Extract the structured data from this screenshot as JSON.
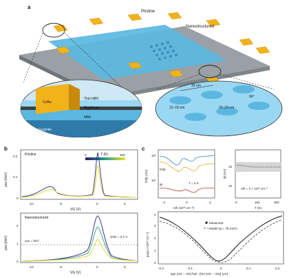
{
  "panel_a": {
    "letter": "a",
    "labels": {
      "pristine": "Pristine",
      "nanostructured": "Nanostructured",
      "cr_au": "Cr/Au",
      "thin_hbn": "Thin hBN",
      "graphene": "Graphene",
      "hbn": "hBN",
      "graphite": "Graphite",
      "dim_35": "35 nm",
      "dim_12_15": "12–15 nm",
      "dim_20_23": "20–23 nm",
      "angle": "66°"
    }
  },
  "panel_b": {
    "letter": "b",
    "top": {
      "title": "Pristine",
      "colorbar_label": "T (K)",
      "colorbar_min": "0",
      "colorbar_max": "300",
      "ylabel": "ρxx (h/e²)",
      "xlabel": "VG (V)",
      "yticks": [
        "0",
        "0.1",
        "0.2"
      ],
      "xticks": [
        "-10",
        "-5",
        "0",
        "5"
      ]
    },
    "bottom": {
      "title": "Nanostructured",
      "ylabel": "ρxx (h/e²)",
      "xlabel": "VG (V)",
      "yticks": [
        "0",
        "1",
        "2"
      ],
      "xticks": [
        "-10",
        "-5",
        "0",
        "5"
      ],
      "ref_label": "ρxx = h/e²",
      "delta_label": "ΔVD = 2.1 V"
    }
  },
  "panel_c": {
    "letter": "c",
    "inset_left": {
      "ylabel": "lmfp (nm)",
      "xlabel": "nth (10¹² cm⁻²)",
      "temp_label": "T = 4 K",
      "yticks": [
        "10¹",
        "10²"
      ],
      "xticks": [
        "-4",
        "0",
        "4"
      ],
      "side_labels": [
        "lmfp",
        "lϕ"
      ]
    },
    "inset_right": {
      "ylabel": "lϕ (nm)",
      "xlabel": "T (K)",
      "density_label": "nth = 2 × 10¹² cm⁻²",
      "yticks": [
        "10",
        "15"
      ],
      "xticks": [
        "0",
        "150",
        "300"
      ]
    },
    "bottom": {
      "ylabel": "|ρxy| (×10¹² cm⁻²)",
      "xlabel": "sgn (VG − VD) ħvF √(πn |VG − VD|) (eV)",
      "legend_measured": "Measured",
      "legend_model": "Model (Δ = 78 meV)",
      "yticks": [
        "0",
        "1",
        "2",
        "3",
        "4"
      ],
      "xticks": [
        "-0.2",
        "-0.1",
        "0",
        "0.1",
        "0.2"
      ]
    }
  },
  "colors": {
    "substrate": "#8f9499",
    "graphene": "#5bb7e0",
    "gold": "#f2b21a",
    "hbn": "#9ad7f2",
    "graphite": "#2e7aa8"
  }
}
